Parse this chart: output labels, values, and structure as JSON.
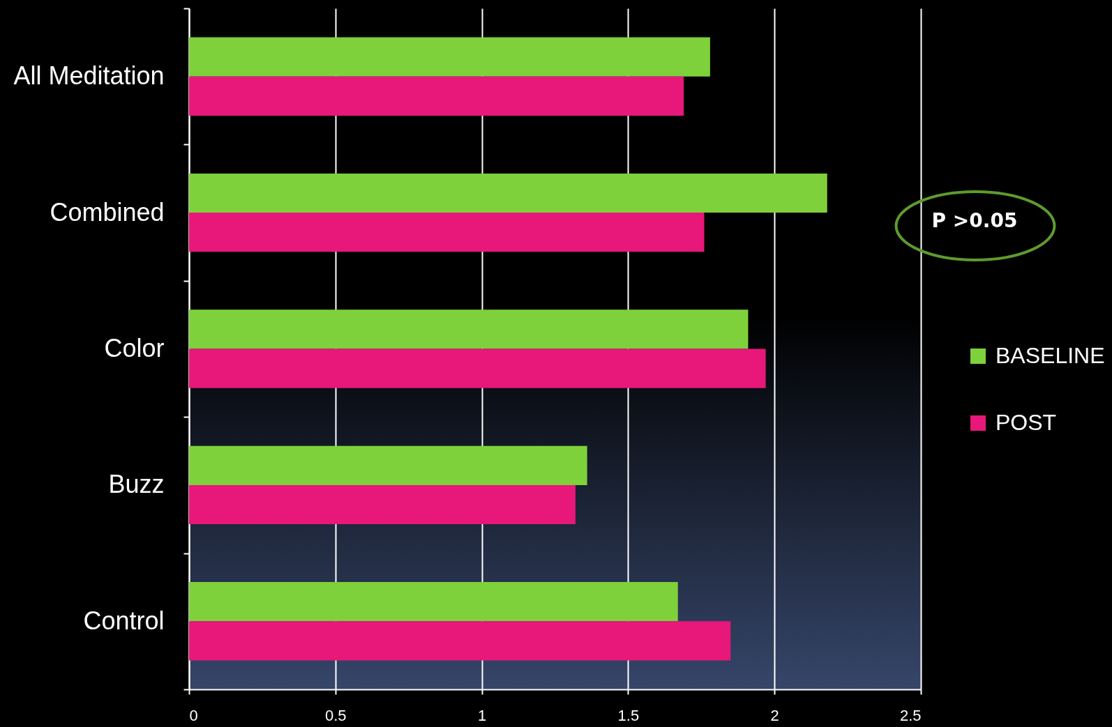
{
  "chart_data": {
    "type": "bar",
    "orientation": "horizontal",
    "categories": [
      "All Meditation",
      "Combined",
      "Color",
      "Buzz",
      "Control"
    ],
    "series": [
      {
        "name": "BASELINE",
        "color": "#7fd13b",
        "values": [
          1.78,
          2.18,
          1.91,
          1.36,
          1.67
        ]
      },
      {
        "name": "POST",
        "color": "#e8177a",
        "values": [
          1.69,
          1.76,
          1.97,
          1.32,
          1.85
        ]
      }
    ],
    "xlim": [
      0,
      2.5
    ],
    "xticks": [
      0,
      0.5,
      1,
      1.5,
      2,
      2.5
    ],
    "grid": "x",
    "legend": "right",
    "annotations": [
      "P >0.05"
    ]
  }
}
